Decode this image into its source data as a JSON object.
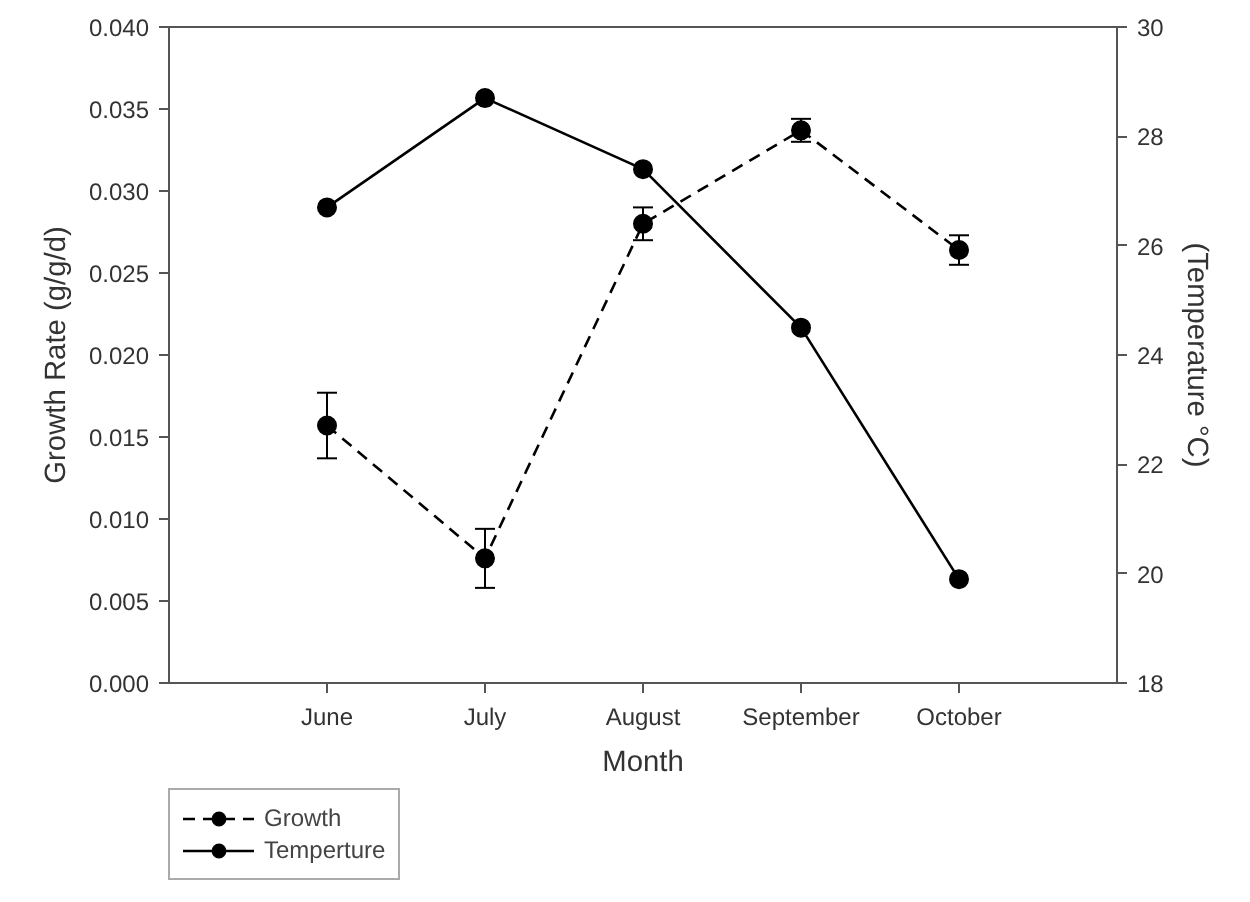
{
  "chart_data": {
    "type": "line",
    "xlabel": "Month",
    "ylabel": "Growth Rate (g/g/d)",
    "y2label": "(Temperature °C)",
    "categories": [
      "June",
      "July",
      "August",
      "September",
      "October"
    ],
    "series": [
      {
        "name": "Growth",
        "color": "#000000",
        "line_style": "dashed",
        "values": [
          0.0157,
          0.0076,
          0.028,
          0.0337,
          0.0264
        ],
        "errors": [
          0.002,
          0.0018,
          0.001,
          0.0007,
          0.0009
        ]
      },
      {
        "name": "Temperture",
        "color": "#000000",
        "line_style": "solid",
        "axis": "y2",
        "values": [
          26.7,
          28.7,
          27.4,
          24.5,
          19.9
        ]
      }
    ],
    "ylim": [
      0,
      0.04
    ],
    "yticks": [
      {
        "value": 0,
        "label": "0.000"
      },
      {
        "value": 0.005,
        "label": "0.005"
      },
      {
        "value": 0.01,
        "label": "0.010"
      },
      {
        "value": 0.015,
        "label": "0.015"
      },
      {
        "value": 0.02,
        "label": "0.020"
      },
      {
        "value": 0.025,
        "label": "0.025"
      },
      {
        "value": 0.03,
        "label": "0.030"
      },
      {
        "value": 0.035,
        "label": "0.035"
      },
      {
        "value": 0.04,
        "label": "0.040"
      }
    ],
    "y2lim": [
      18,
      30
    ],
    "y2ticks": [
      18,
      20,
      22,
      24,
      26,
      28,
      30
    ],
    "marker": "circle",
    "grid": false,
    "legend": "bottom left"
  }
}
